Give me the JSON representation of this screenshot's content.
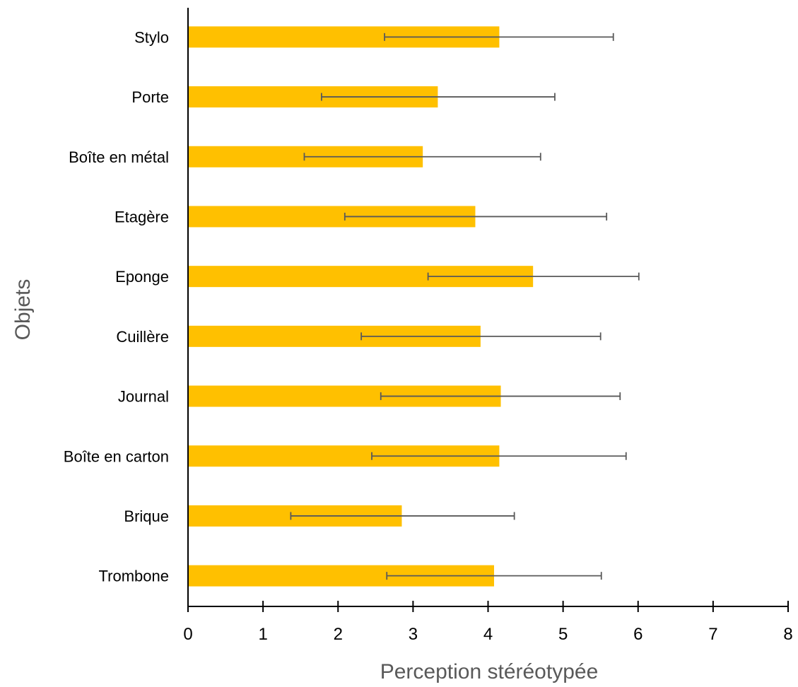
{
  "chart_data": {
    "type": "bar",
    "orientation": "horizontal",
    "categories": [
      "Stylo",
      "Porte",
      "Boîte en métal",
      "Etagère",
      "Eponge",
      "Cuillère",
      "Journal",
      "Boîte en carton",
      "Brique",
      "Trombone"
    ],
    "series": [
      {
        "values": [
          4.15,
          3.33,
          3.13,
          3.83,
          4.6,
          3.9,
          4.17,
          4.15,
          2.85,
          4.08
        ],
        "error_low": [
          2.62,
          1.78,
          1.55,
          2.09,
          3.2,
          2.31,
          2.57,
          2.45,
          1.37,
          2.65
        ],
        "error_high": [
          5.67,
          4.89,
          4.7,
          5.58,
          6.01,
          5.5,
          5.76,
          5.84,
          4.35,
          5.51
        ],
        "color": "#FFC000"
      }
    ],
    "xlabel": "Perception stéréotypée",
    "ylabel": "Objets",
    "xlim": [
      0,
      8
    ],
    "xticks": [
      "0",
      "1",
      "2",
      "3",
      "4",
      "5",
      "6",
      "7",
      "8"
    ],
    "grid": false,
    "legend": "none",
    "error_bar_color": "#595959",
    "axis_color": "#000000"
  }
}
